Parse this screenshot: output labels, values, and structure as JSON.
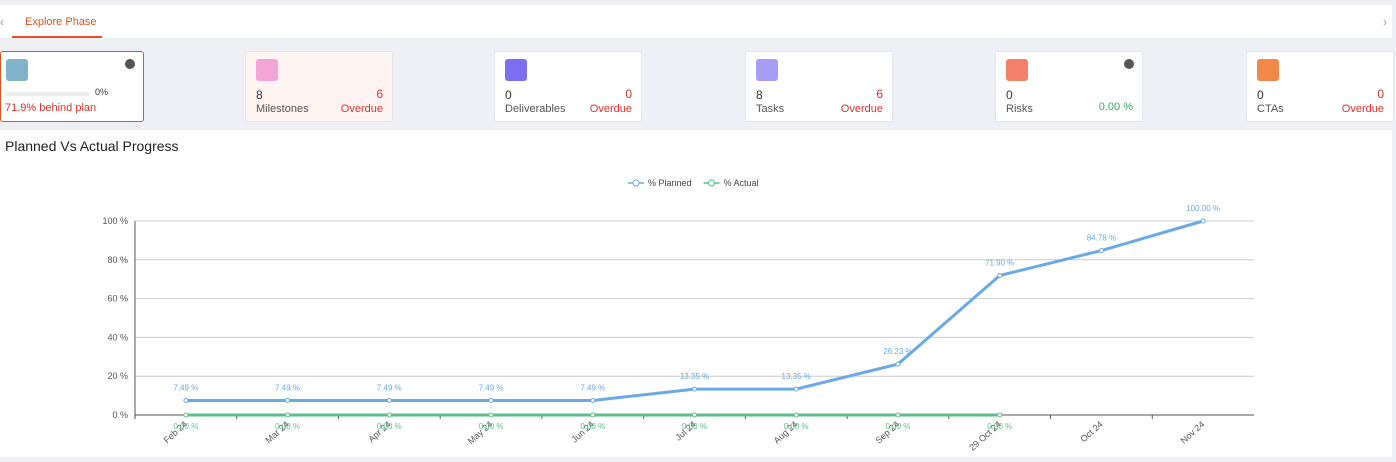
{
  "tabs": [
    "Explore Phase"
  ],
  "progress_card": {
    "progress": "0%",
    "status": "71.9% behind plan"
  },
  "cards": [
    {
      "count": "8",
      "label": "Milestones",
      "extra": "6",
      "extra_label": "Overdue"
    },
    {
      "count": "0",
      "label": "Deliverables",
      "extra": "0",
      "extra_label": "Overdue"
    },
    {
      "count": "8",
      "label": "Tasks",
      "extra": "6",
      "extra_label": "Overdue"
    },
    {
      "count": "0",
      "label": "Risks",
      "extra": "0.00 %"
    },
    {
      "count": "0",
      "label": "CTAs",
      "extra": "0",
      "extra_label": "Overdue"
    }
  ],
  "chart_data": {
    "type": "line",
    "title": "Planned Vs Actual Progress",
    "categories": [
      "Feb 24",
      "Mar 24",
      "Apr 24",
      "May 24",
      "Jun 24",
      "Jul 24",
      "Aug 24",
      "Sep 24",
      "29 Oct 24",
      "Oct 24",
      "Nov 24"
    ],
    "series": [
      {
        "name": "% Planned",
        "color": "#6aa9e6",
        "values": [
          7.49,
          7.49,
          7.49,
          7.49,
          7.49,
          13.35,
          13.35,
          26.23,
          71.9,
          84.78,
          100.0
        ],
        "value_labels": [
          "7.49 %",
          "7.49 %",
          "7.49 %",
          "7.49 %",
          "7.49 %",
          "13.35 %",
          "13.35 %",
          "26.23 %",
          "71.90 %",
          "84.78 %",
          "100.00 %"
        ]
      },
      {
        "name": "% Actual",
        "color": "#5dbf8b",
        "values": [
          0,
          0,
          0,
          0,
          0,
          0,
          0,
          0,
          0,
          null,
          null
        ],
        "value_labels": [
          "0.00 %",
          "0.00 %",
          "0.00 %",
          "0.00 %",
          "0.00 %",
          "0.00 %",
          "0.00 %",
          "0.00 %",
          "0.00 %",
          null,
          null
        ]
      }
    ],
    "ylim": [
      0,
      100
    ],
    "yticks": [
      {
        "value": 0,
        "label": "0 %"
      },
      {
        "value": 20,
        "label": "20 %"
      },
      {
        "value": 40,
        "label": "40 %"
      },
      {
        "value": 60,
        "label": "60 %"
      },
      {
        "value": 80,
        "label": "80 %"
      },
      {
        "value": 100,
        "label": "100 %"
      }
    ],
    "grid": true
  }
}
